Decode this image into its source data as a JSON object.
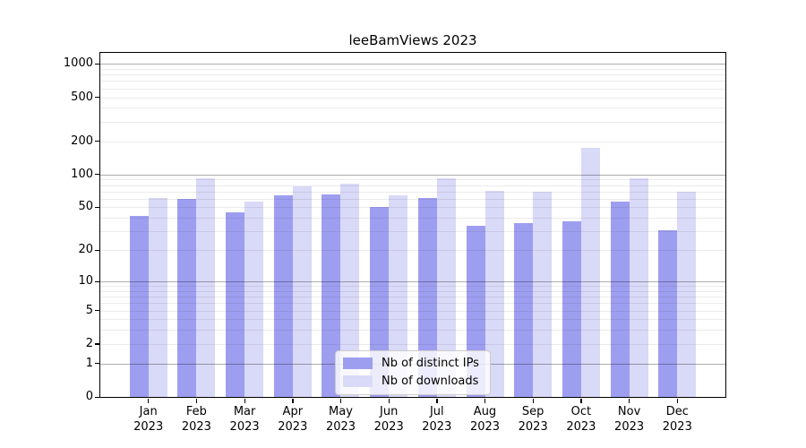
{
  "title": "leeBamViews 2023",
  "colors": {
    "ips_bar": "#9e9ef0",
    "downloads_bar": "#d9d9f8",
    "grid_major": "#00000052",
    "grid_minor": "#00000014",
    "axis": "#000000",
    "legend_border": "#cccccc",
    "background": "#ffffff"
  },
  "chart_data": {
    "type": "bar",
    "title": "leeBamViews 2023",
    "categories": [
      "Jan 2023",
      "Feb 2023",
      "Mar 2023",
      "Apr 2023",
      "May 2023",
      "Jun 2023",
      "Jul 2023",
      "Aug 2023",
      "Sep 2023",
      "Oct 2023",
      "Nov 2023",
      "Dec 2023"
    ],
    "x_tick_line1": [
      "Jan",
      "Feb",
      "Mar",
      "Apr",
      "May",
      "Jun",
      "Jul",
      "Aug",
      "Sep",
      "Oct",
      "Nov",
      "Dec"
    ],
    "x_tick_line2": "2023",
    "series": [
      {
        "name": "Nb of distinct IPs",
        "color": "#9e9ef0",
        "values": [
          42,
          60,
          45,
          65,
          66,
          50,
          61,
          34,
          36,
          37,
          57,
          31
        ]
      },
      {
        "name": "Nb of downloads",
        "color": "#d9d9f8",
        "values": [
          61,
          93,
          56,
          78,
          83,
          65,
          93,
          71,
          70,
          173,
          93,
          69
        ]
      }
    ],
    "xlabel": "",
    "ylabel": "",
    "yscale": "symlog-log1p",
    "ymax": 1255,
    "ymin": 0,
    "yticks": [
      0,
      1,
      2,
      5,
      10,
      20,
      50,
      100,
      200,
      500,
      1000
    ],
    "grid_major_lines": [
      1,
      10,
      100,
      1000
    ],
    "grid_minor_lines": [
      2,
      3,
      4,
      5,
      6,
      7,
      8,
      9,
      20,
      30,
      40,
      50,
      60,
      70,
      80,
      90,
      200,
      300,
      400,
      500,
      600,
      700,
      800,
      900
    ],
    "grid": "horizontal",
    "legend_position": "inside-bottom-center"
  },
  "legend": {
    "items": [
      {
        "label": "Nb of distinct IPs"
      },
      {
        "label": "Nb of downloads"
      }
    ]
  }
}
